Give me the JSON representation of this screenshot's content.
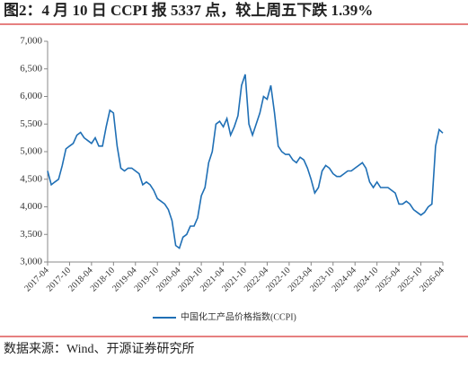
{
  "chart_data": {
    "type": "line",
    "title": "图2：4 月 10 日 CCPI 报 5337 点，较上周五下跌 1.39%",
    "source": "数据来源：Wind、开源证券研究所",
    "x": [
      "2017-04",
      "2017-05",
      "2017-06",
      "2017-07",
      "2017-08",
      "2017-09",
      "2017-10",
      "2017-11",
      "2017-12",
      "2018-01",
      "2018-02",
      "2018-03",
      "2018-04",
      "2018-05",
      "2018-06",
      "2018-07",
      "2018-08",
      "2018-09",
      "2018-10",
      "2018-11",
      "2018-12",
      "2019-01",
      "2019-02",
      "2019-03",
      "2019-04",
      "2019-05",
      "2019-06",
      "2019-07",
      "2019-08",
      "2019-09",
      "2019-10",
      "2019-11",
      "2019-12",
      "2020-01",
      "2020-02",
      "2020-03",
      "2020-04",
      "2020-05",
      "2020-06",
      "2020-07",
      "2020-08",
      "2020-09",
      "2020-10",
      "2020-11",
      "2020-12",
      "2021-01",
      "2021-02",
      "2021-03",
      "2021-04",
      "2021-05",
      "2021-06",
      "2021-07",
      "2021-08",
      "2021-09",
      "2021-10",
      "2021-11",
      "2021-12",
      "2022-01",
      "2022-02",
      "2022-03",
      "2022-04",
      "2022-05",
      "2022-06",
      "2022-07",
      "2022-08",
      "2022-09",
      "2022-10",
      "2022-11",
      "2022-12",
      "2023-01",
      "2023-02",
      "2023-03",
      "2023-04",
      "2023-05",
      "2023-06",
      "2023-07",
      "2023-08",
      "2023-09",
      "2023-10",
      "2023-11",
      "2023-12",
      "2024-01",
      "2024-02",
      "2024-03",
      "2024-04",
      "2024-05",
      "2024-06",
      "2024-07",
      "2024-08",
      "2024-09",
      "2024-10",
      "2024-11",
      "2024-12",
      "2025-01",
      "2025-02",
      "2025-03",
      "2025-04",
      "2025-05",
      "2025-06",
      "2025-07",
      "2025-08",
      "2025-09",
      "2025-10",
      "2025-11",
      "2025-12",
      "2026-01",
      "2026-02",
      "2026-03",
      "2026-04"
    ],
    "series": [
      {
        "name": "中国化工产品价格指数(CCPI)",
        "color": "#1f6fb5",
        "values": [
          4650,
          4400,
          4450,
          4500,
          4750,
          5050,
          5100,
          5150,
          5300,
          5350,
          5250,
          5200,
          5150,
          5250,
          5100,
          5100,
          5450,
          5750,
          5700,
          5100,
          4700,
          4650,
          4700,
          4700,
          4650,
          4600,
          4400,
          4450,
          4400,
          4300,
          4150,
          4100,
          4050,
          3950,
          3750,
          3300,
          3250,
          3450,
          3500,
          3650,
          3650,
          3800,
          4200,
          4350,
          4800,
          5000,
          5500,
          5550,
          5450,
          5600,
          5300,
          5450,
          5650,
          6200,
          6400,
          5500,
          5300,
          5500,
          5700,
          6000,
          5950,
          6200,
          5700,
          5100,
          5000,
          4950,
          4950,
          4850,
          4800,
          4900,
          4850,
          4700,
          4500,
          4250,
          4350,
          4650,
          4750,
          4700,
          4600,
          4550,
          4550,
          4600,
          4650,
          4650,
          4700,
          4750,
          4800,
          4700,
          4450,
          4350,
          4450,
          4350,
          4350,
          4350,
          4300,
          4250,
          4050,
          4050,
          4100,
          4050,
          3950,
          3900,
          3850,
          3900,
          4000,
          4050,
          5100,
          5400,
          5337
        ]
      }
    ],
    "xticks": [
      "2017-04",
      "2017-10",
      "2018-04",
      "2018-10",
      "2019-04",
      "2019-10",
      "2020-04",
      "2020-10",
      "2021-04",
      "2021-10",
      "2022-04",
      "2022-10",
      "2023-04",
      "2023-10",
      "2024-04",
      "2024-10",
      "2025-04",
      "2025-10",
      "2026-04"
    ],
    "ylim": [
      3000,
      7000
    ],
    "yticks": [
      {
        "value": 3000,
        "label": "3,000"
      },
      {
        "value": 3500,
        "label": "3,500"
      },
      {
        "value": 4000,
        "label": "4,000"
      },
      {
        "value": 4500,
        "label": "4,500"
      },
      {
        "value": 5000,
        "label": "5,000"
      },
      {
        "value": 5500,
        "label": "5,500"
      },
      {
        "value": 6000,
        "label": "6,000"
      },
      {
        "value": 6500,
        "label": "6,500"
      },
      {
        "value": 7000,
        "label": "7,000"
      }
    ],
    "legend": "bottom"
  }
}
